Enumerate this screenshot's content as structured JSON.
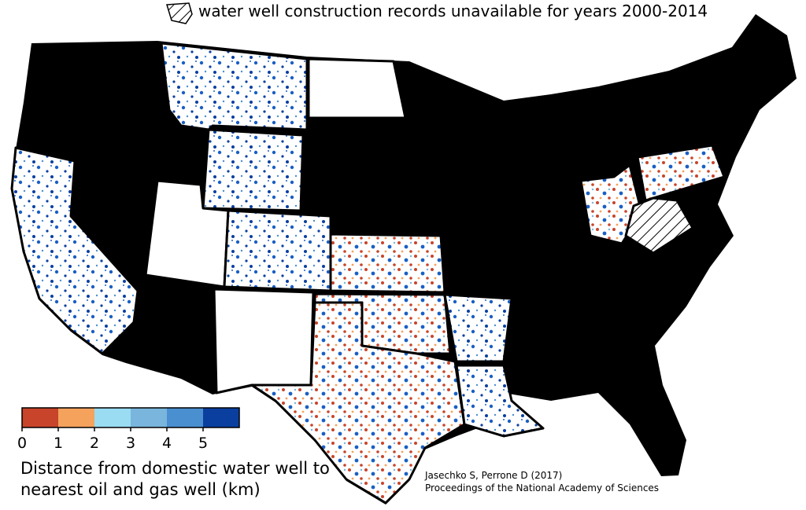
{
  "title": "water well construction records unavailable for years 2000-2014",
  "legend": {
    "title_lines": [
      "Distance from domestic water well to",
      "nearest oil and gas well (km)"
    ],
    "ticks": [
      0,
      1,
      2,
      3,
      4,
      5
    ],
    "colors": [
      "#c8442a",
      "#f5a25d",
      "#9adcf2",
      "#79b5dc",
      "#4a8fd0",
      "#0a3fa0"
    ]
  },
  "citation": [
    "Jasechko S, Perrone D (2017)",
    "Proceedings of the National Academy of Sciences"
  ]
}
